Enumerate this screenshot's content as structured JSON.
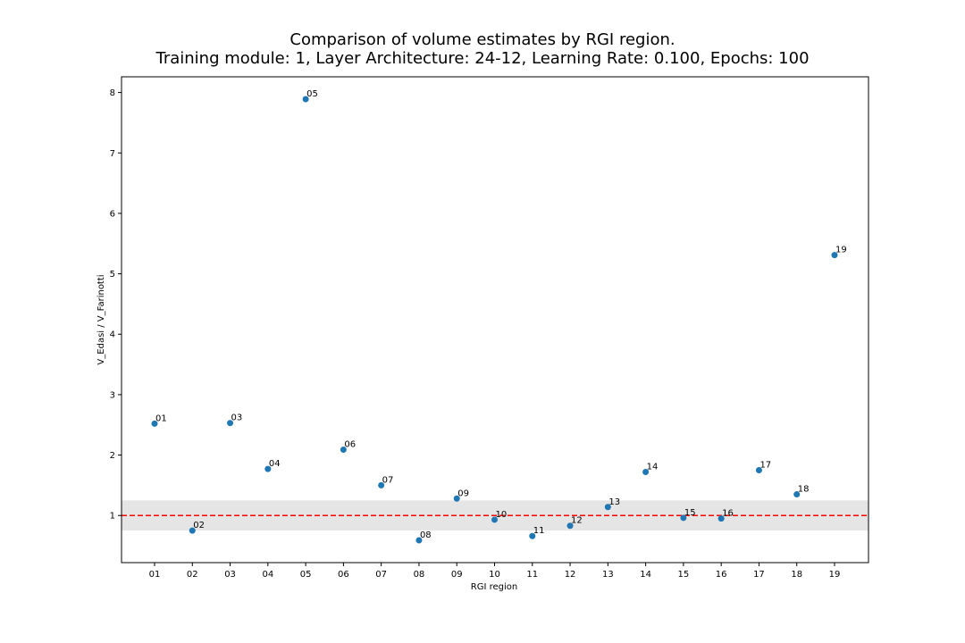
{
  "chart_data": {
    "type": "scatter",
    "title": "Comparison of volume estimates by RGI region.",
    "subtitle": "Training module: 1, Layer Architecture: 24-12, Learning Rate: 0.100, Epochs: 100",
    "xlabel": "RGI region",
    "ylabel": "V_Edasi / V_Farinotti",
    "categories": [
      "01",
      "02",
      "03",
      "04",
      "05",
      "06",
      "07",
      "08",
      "09",
      "10",
      "11",
      "12",
      "13",
      "14",
      "15",
      "16",
      "17",
      "18",
      "19"
    ],
    "values": [
      2.52,
      0.75,
      2.53,
      1.77,
      7.89,
      2.09,
      1.5,
      0.59,
      1.28,
      0.93,
      0.66,
      0.83,
      1.14,
      1.72,
      0.96,
      0.95,
      1.75,
      1.35,
      5.31
    ],
    "point_labels": [
      "01",
      "02",
      "03",
      "04",
      "05",
      "06",
      "07",
      "08",
      "09",
      "10",
      "11",
      "12",
      "13",
      "14",
      "15",
      "16",
      "17",
      "18",
      "19"
    ],
    "yticks": [
      1,
      2,
      3,
      4,
      5,
      6,
      7,
      8
    ],
    "ytick_labels": [
      "1",
      "2",
      "3",
      "4",
      "5",
      "6",
      "7",
      "8"
    ],
    "ylim": [
      0.22,
      8.26
    ],
    "reference_line": {
      "y": 1.0,
      "style": "dashed",
      "color": "#ff0000"
    },
    "band": {
      "y_range": [
        0.75,
        1.25
      ],
      "color": "#e5e5e5"
    },
    "marker_color": "#1f77b4",
    "grid": false,
    "legend": false
  }
}
